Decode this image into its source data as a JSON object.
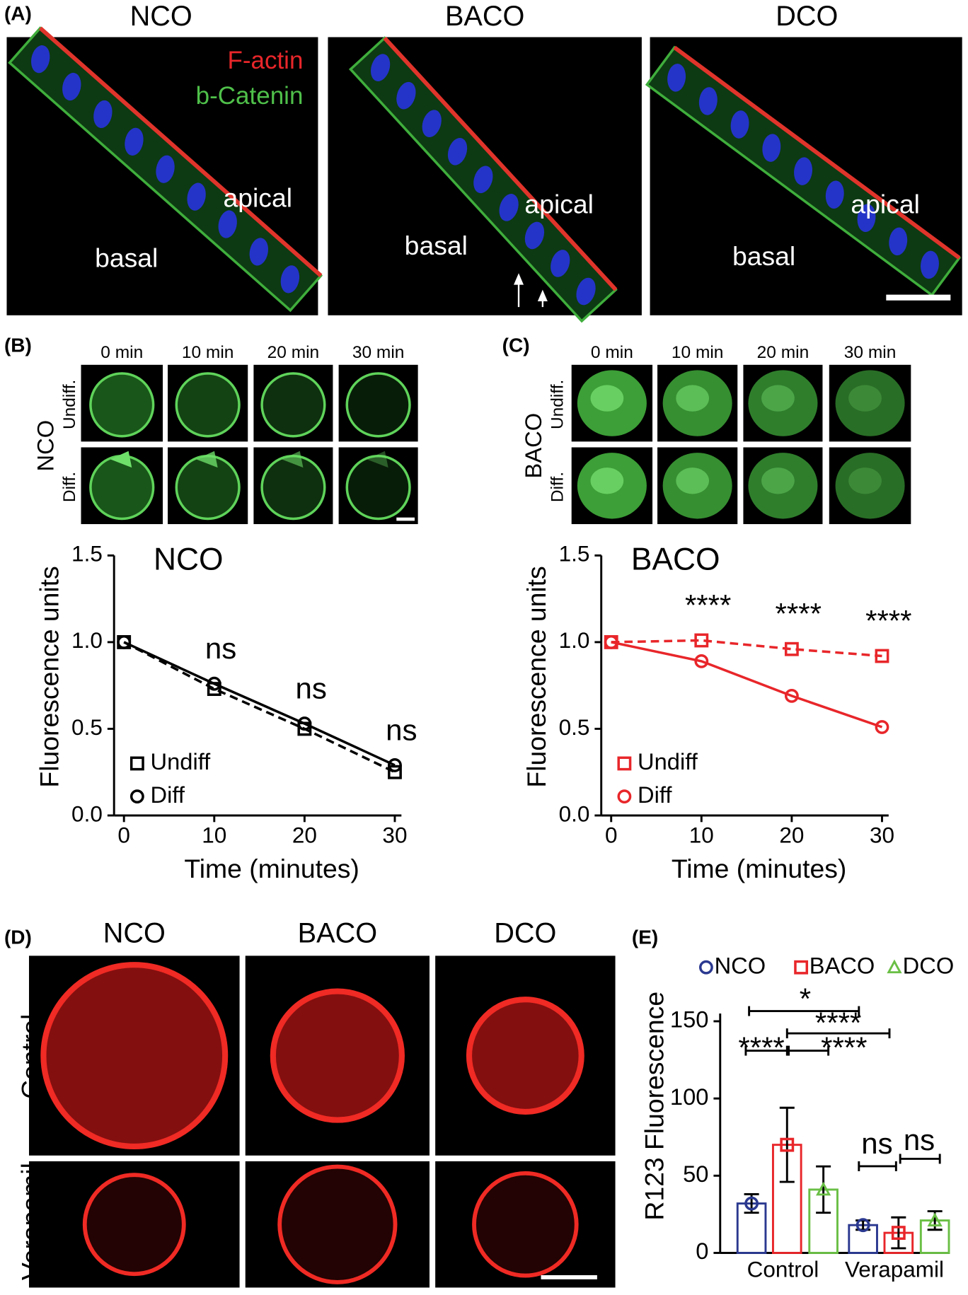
{
  "panel_a": {
    "label": "(A)",
    "images": [
      {
        "title": "NCO",
        "stains": [
          "F-actin",
          "b-Catenin"
        ],
        "apical": "apical",
        "basal": "basal"
      },
      {
        "title": "BACO",
        "apical": "apical",
        "basal": "basal"
      },
      {
        "title": "DCO",
        "apical": "apical",
        "basal": "basal"
      }
    ]
  },
  "panel_b": {
    "label": "(B)",
    "group": "NCO",
    "rows": [
      "Undiff.",
      "Diff."
    ],
    "times": [
      "0 min",
      "10 min",
      "20 min",
      "30 min"
    ]
  },
  "panel_c": {
    "label": "(C)",
    "group": "BACO",
    "rows": [
      "Undiff.",
      "Diff."
    ],
    "times": [
      "0 min",
      "10 min",
      "20 min",
      "30 min"
    ]
  },
  "panel_d": {
    "label": "(D)",
    "columns": [
      "NCO",
      "BACO",
      "DCO"
    ],
    "rows": [
      "Control",
      "Verapamil"
    ]
  },
  "panel_e": {
    "label": "(E)"
  },
  "chart_data": [
    {
      "type": "line",
      "title": "NCO",
      "xlabel": "Time (minutes)",
      "ylabel": "Fluorescence units",
      "x": [
        0,
        10,
        20,
        30
      ],
      "xlim": [
        0,
        30
      ],
      "xticks": [
        0,
        10,
        20,
        30
      ],
      "ylim": [
        0,
        1.5
      ],
      "yticks": [
        {
          "value": 0,
          "label": "0.0"
        },
        0.5,
        {
          "value": 1,
          "label": "1.0"
        },
        1.5
      ],
      "series": [
        {
          "name": "Undiff",
          "color": "#000000",
          "marker": "square",
          "dashed": true,
          "values": [
            1,
            0.73,
            0.5,
            0.25
          ]
        },
        {
          "name": "Diff",
          "color": "#000000",
          "marker": "circle",
          "dashed": false,
          "values": [
            1,
            0.76,
            0.53,
            0.29
          ]
        }
      ],
      "annotations": [
        "ns",
        "ns",
        "ns"
      ]
    },
    {
      "type": "line",
      "title": "BACO",
      "xlabel": "Time (minutes)",
      "ylabel": "Fluorescence units",
      "x": [
        0,
        10,
        20,
        30
      ],
      "xlim": [
        0,
        30
      ],
      "xticks": [
        0,
        10,
        20,
        30
      ],
      "ylim": [
        0,
        1.5
      ],
      "yticks": [
        {
          "value": 0,
          "label": "0.0"
        },
        0.5,
        {
          "value": 1,
          "label": "1.0"
        },
        1.5
      ],
      "series": [
        {
          "name": "Undiff",
          "color": "#e8262a",
          "marker": "square",
          "dashed": true,
          "values": [
            1,
            1.01,
            0.96,
            0.92
          ]
        },
        {
          "name": "Diff",
          "color": "#e8262a",
          "marker": "circle",
          "dashed": false,
          "values": [
            1,
            0.89,
            0.69,
            0.51
          ]
        }
      ],
      "annotations": [
        "****",
        "****",
        "****"
      ]
    },
    {
      "type": "bar",
      "ylabel": "R123 Fluorescence",
      "categories": [
        "Control",
        "Verapamil"
      ],
      "ylim": [
        0,
        155
      ],
      "yticks": [
        0,
        50,
        100,
        150
      ],
      "series": [
        {
          "name": "NCO",
          "color": "#2b3990",
          "marker": "circle",
          "values": [
            32,
            18
          ],
          "errors": [
            6,
            3
          ]
        },
        {
          "name": "BACO",
          "color": "#e8262a",
          "marker": "square",
          "values": [
            70,
            13
          ],
          "errors": [
            24,
            10
          ]
        },
        {
          "name": "DCO",
          "color": "#6abf45",
          "marker": "triangle",
          "values": [
            41,
            21
          ],
          "errors": [
            15,
            6
          ]
        }
      ],
      "significance": [
        "*",
        "****",
        "****",
        "****",
        "ns",
        "ns"
      ]
    }
  ]
}
